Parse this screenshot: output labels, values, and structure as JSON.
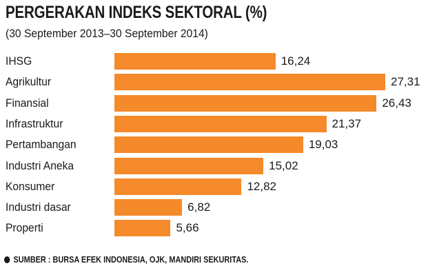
{
  "colors": {
    "bar": "#F58A2A",
    "text": "#1a1a1a",
    "background": "#ffffff"
  },
  "source": {
    "icon": "bullet-icon",
    "text": "SUMBER : BURSA EFEK INDONESIA, OJK, MANDIRI SEKURITAS."
  },
  "chart_data": {
    "type": "bar",
    "orientation": "horizontal",
    "title": "PERGERAKAN INDEKS SEKTORAL (%)",
    "subtitle": "(30 September 2013–30 September 2014)",
    "categories": [
      "IHSG",
      "Agrikultur",
      "Finansial",
      "Infrastruktur",
      "Pertambangan",
      "Industri Aneka",
      "Konsumer",
      "Industri dasar",
      "Properti"
    ],
    "values": [
      16.24,
      27.31,
      26.43,
      21.37,
      19.03,
      15.02,
      12.82,
      6.82,
      5.66
    ],
    "value_labels": [
      "16,24",
      "27,31",
      "26,43",
      "21,37",
      "19,03",
      "15,02",
      "12,82",
      "6,82",
      "5,66"
    ],
    "xlim": [
      0,
      27.31
    ],
    "grid": false,
    "legend": "none"
  }
}
